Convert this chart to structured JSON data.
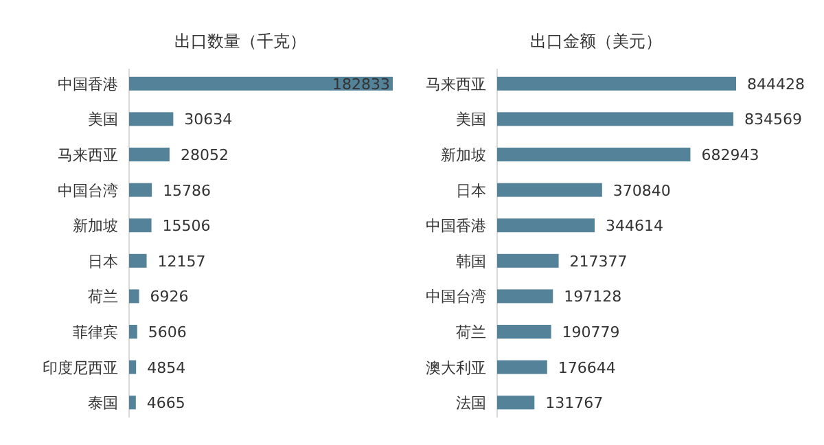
{
  "chart_data": [
    {
      "type": "bar",
      "orientation": "horizontal",
      "title": "出口数量（千克）",
      "categories": [
        "中国香港",
        "美国",
        "马来西亚",
        "中国台湾",
        "新加坡",
        "日本",
        "荷兰",
        "菲律宾",
        "印度尼西亚",
        "泰国"
      ],
      "values": [
        182833,
        30634,
        28052,
        15786,
        15506,
        12157,
        6926,
        5606,
        4854,
        4665
      ],
      "color": "#538299",
      "data_labels": true
    },
    {
      "type": "bar",
      "orientation": "horizontal",
      "title": "出口金额（美元）",
      "categories": [
        "马来西亚",
        "美国",
        "新加坡",
        "日本",
        "中国香港",
        "韩国",
        "中国台湾",
        "荷兰",
        "澳大利亚",
        "法国"
      ],
      "values": [
        844428,
        834569,
        682943,
        370840,
        344614,
        217377,
        197128,
        190779,
        176644,
        131767
      ],
      "color": "#538299",
      "data_labels": true
    }
  ]
}
